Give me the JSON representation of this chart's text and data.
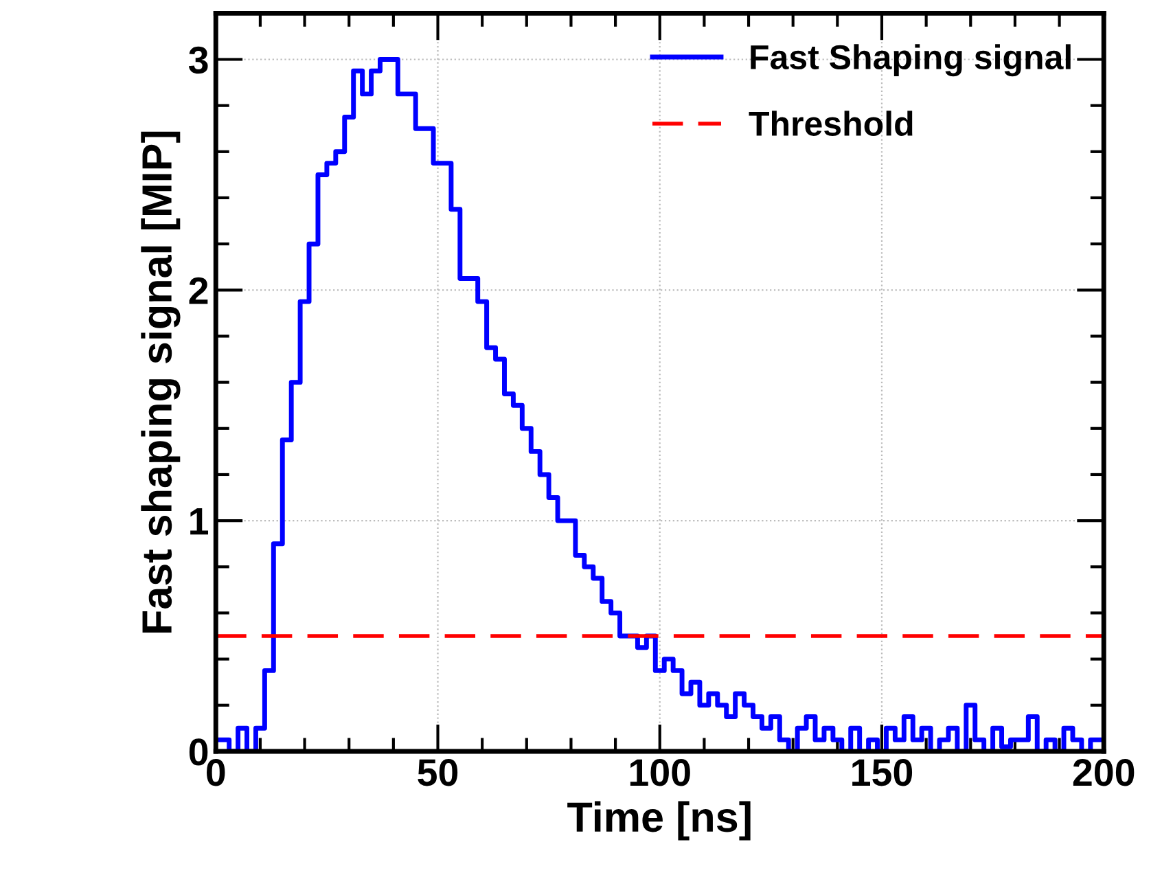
{
  "chart_data": {
    "type": "step",
    "xlabel": "Time [ns]",
    "ylabel": "Fast shaping signal [MIP]",
    "x": [
      0,
      2,
      4,
      6,
      8,
      10,
      12,
      14,
      16,
      18,
      20,
      22,
      24,
      26,
      28,
      30,
      32,
      34,
      36,
      38,
      40,
      42,
      44,
      46,
      48,
      50,
      52,
      54,
      56,
      58,
      60,
      62,
      64,
      66,
      68,
      70,
      72,
      74,
      76,
      78,
      80,
      82,
      84,
      86,
      88,
      90,
      92,
      94,
      96,
      98,
      100,
      102,
      104,
      106,
      108,
      110,
      112,
      114,
      116,
      118,
      120,
      122,
      124,
      126,
      128,
      130,
      132,
      134,
      136,
      138,
      140,
      142,
      144,
      146,
      148,
      150,
      152,
      154,
      156,
      158,
      160,
      162,
      164,
      166,
      168,
      170,
      172,
      174,
      176,
      178,
      180,
      182,
      184,
      186,
      188,
      190,
      192,
      194,
      196,
      198,
      200
    ],
    "series": [
      {
        "name": "Fast Shaping signal",
        "color": "#0000ff",
        "values": [
          0.05,
          0.05,
          0,
          0.1,
          0,
          0.1,
          0.35,
          0.9,
          1.35,
          1.6,
          1.95,
          2.2,
          2.5,
          2.55,
          2.6,
          2.75,
          2.95,
          2.85,
          2.95,
          3.0,
          3.0,
          2.85,
          2.85,
          2.7,
          2.7,
          2.55,
          2.55,
          2.35,
          2.05,
          2.05,
          1.95,
          1.75,
          1.7,
          1.55,
          1.5,
          1.4,
          1.3,
          1.2,
          1.1,
          1.0,
          1.0,
          0.85,
          0.8,
          0.75,
          0.65,
          0.6,
          0.5,
          0.5,
          0.45,
          0.5,
          0.35,
          0.4,
          0.35,
          0.25,
          0.3,
          0.2,
          0.25,
          0.2,
          0.15,
          0.25,
          0.2,
          0.15,
          0.1,
          0.15,
          0.05,
          0,
          0.1,
          0.15,
          0.05,
          0.1,
          0.05,
          0,
          0.1,
          0,
          0.05,
          0,
          0.1,
          0.05,
          0.15,
          0.05,
          0.1,
          0,
          0.05,
          0.1,
          0,
          0.2,
          0.05,
          0,
          0.1,
          0.02,
          0.05,
          0.05,
          0.15,
          0,
          0.05,
          0,
          0.1,
          0.05,
          0,
          0.05,
          0.05
        ]
      }
    ],
    "ref_lines": [
      {
        "axis": "y",
        "value": 0.5,
        "label": "Threshold",
        "color": "#ff0000",
        "line_style": "dashed"
      }
    ],
    "xlim": [
      0,
      200
    ],
    "ylim": [
      0,
      3.2
    ],
    "xticks": [
      0,
      50,
      100,
      150,
      200
    ],
    "yticks": [
      0,
      1,
      2,
      3
    ],
    "grid": true,
    "legend": "top right",
    "line_style": "solid",
    "marker": "none"
  }
}
